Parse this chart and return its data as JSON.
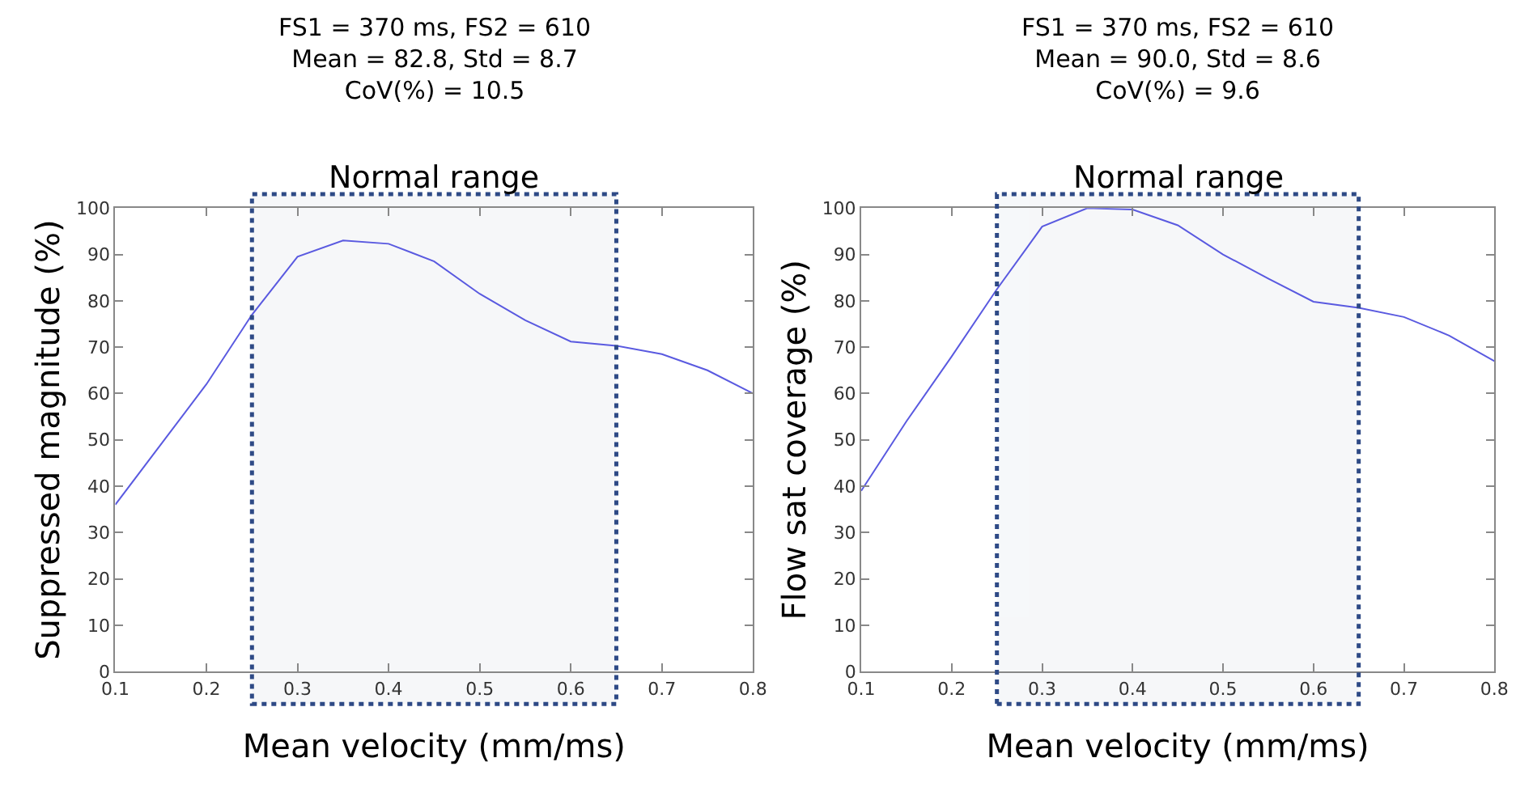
{
  "chart_data": [
    {
      "type": "line",
      "title": "FS1 = 370 ms, FS2 = 610\nMean = 82.8, Std = 8.7\nCoV(%) = 10.5",
      "xlabel": "Mean velocity (mm/ms)",
      "ylabel": "Suppressed magnitude (%)",
      "x": [
        0.1,
        0.15,
        0.2,
        0.25,
        0.3,
        0.35,
        0.4,
        0.45,
        0.5,
        0.55,
        0.6,
        0.65,
        0.7,
        0.75,
        0.8
      ],
      "series": [
        {
          "color": "#5a5ae0",
          "values": [
            36,
            49,
            62,
            77,
            89.5,
            93,
            92.3,
            88.5,
            81.5,
            75.8,
            71.2,
            70.3,
            68.5,
            65,
            60
          ]
        }
      ],
      "xlim": [
        0.1,
        0.8
      ],
      "xticks": [
        0.1,
        0.2,
        0.3,
        0.4,
        0.5,
        0.6,
        0.7,
        0.8
      ],
      "ylim": [
        0,
        100
      ],
      "yticks": [
        0,
        10,
        20,
        30,
        40,
        50,
        60,
        70,
        80,
        90,
        100
      ],
      "bands": [
        {
          "axis": "x",
          "from": 0.25,
          "to": 0.65,
          "label": "Normal range",
          "color": "#2e4a86"
        }
      ],
      "grid": false,
      "marker": "none",
      "line_style": "solid"
    },
    {
      "type": "line",
      "title": "FS1 = 370 ms, FS2 = 610\nMean = 90.0, Std = 8.6\nCoV(%) = 9.6",
      "xlabel": "Mean velocity (mm/ms)",
      "ylabel": "Flow sat coverage (%)",
      "x": [
        0.1,
        0.15,
        0.2,
        0.25,
        0.3,
        0.35,
        0.4,
        0.45,
        0.5,
        0.55,
        0.6,
        0.65,
        0.7,
        0.75,
        0.8
      ],
      "series": [
        {
          "color": "#5a5ae0",
          "values": [
            39,
            54,
            68,
            82.5,
            96,
            100,
            99.7,
            96.3,
            90,
            84.8,
            79.8,
            78.5,
            76.5,
            72.5,
            67
          ]
        }
      ],
      "xlim": [
        0.1,
        0.8
      ],
      "xticks": [
        0.1,
        0.2,
        0.3,
        0.4,
        0.5,
        0.6,
        0.7,
        0.8
      ],
      "ylim": [
        0,
        100
      ],
      "yticks": [
        0,
        10,
        20,
        30,
        40,
        50,
        60,
        70,
        80,
        90,
        100
      ],
      "bands": [
        {
          "axis": "x",
          "from": 0.25,
          "to": 0.65,
          "label": "Normal range",
          "color": "#2e4a86"
        }
      ],
      "grid": false,
      "marker": "none",
      "line_style": "solid"
    }
  ]
}
